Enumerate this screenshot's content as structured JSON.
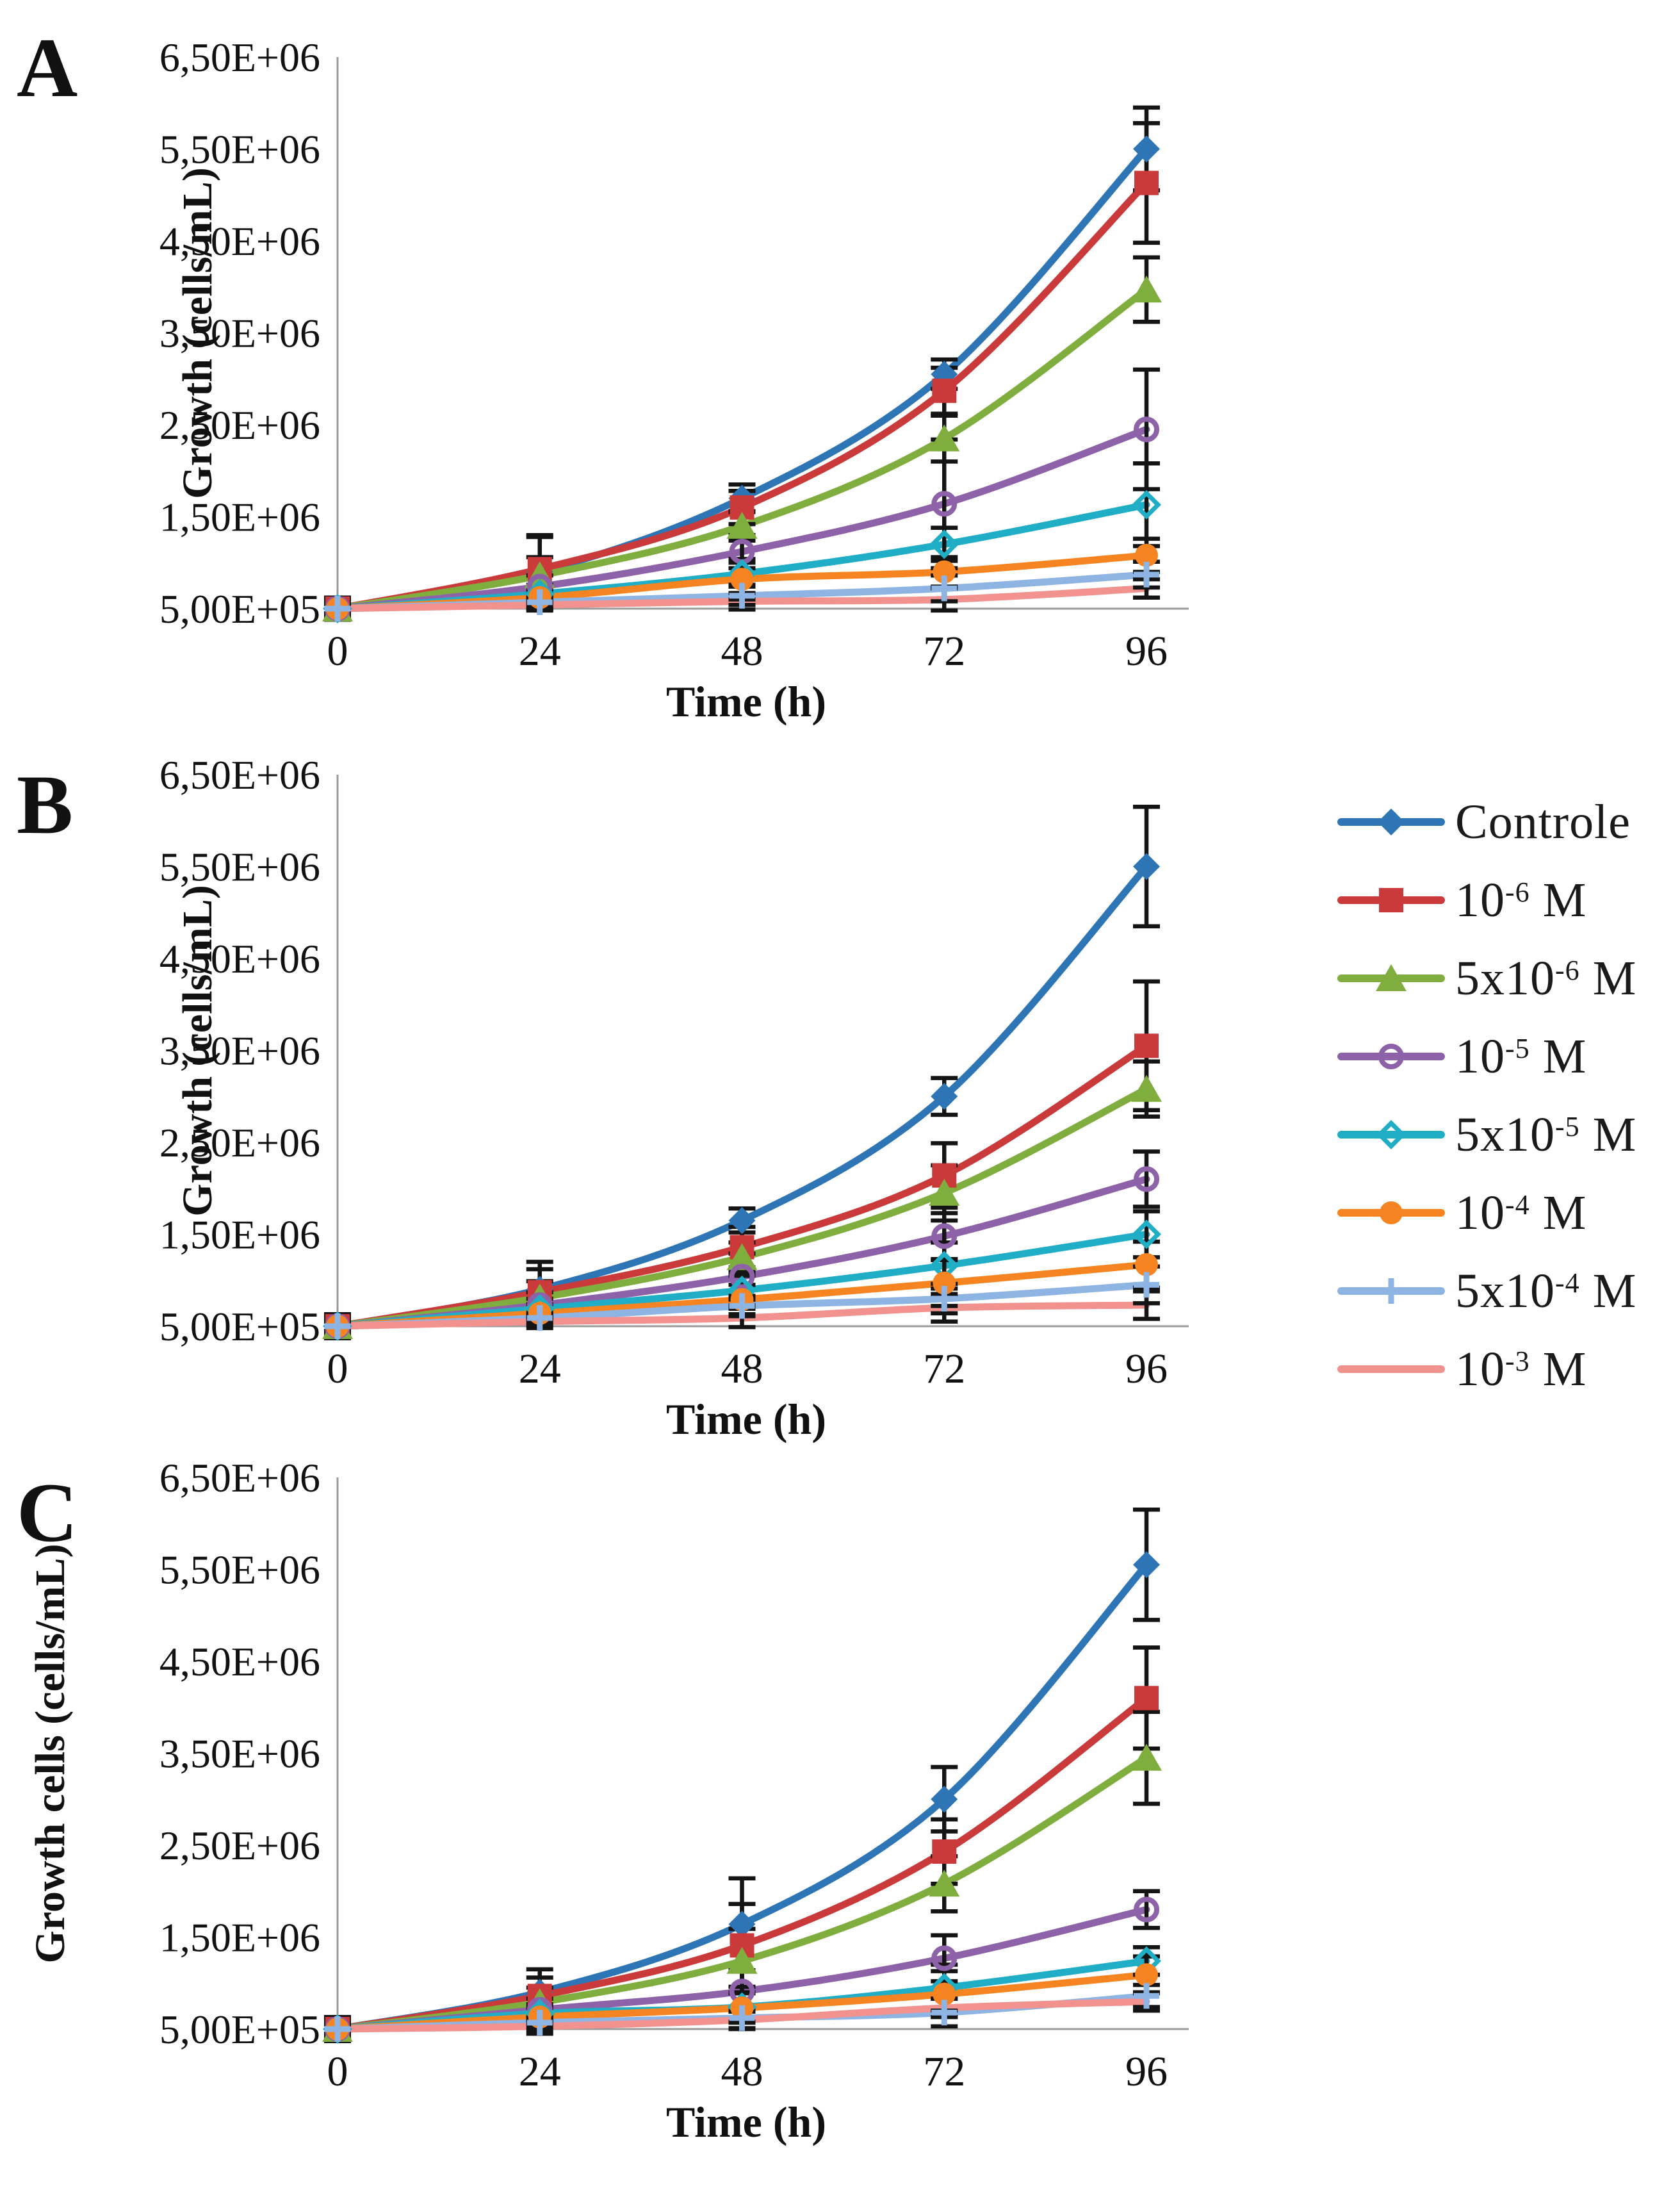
{
  "figure": {
    "x_title": "Time (h)",
    "x_ticks": [
      "0",
      "24",
      "48",
      "72",
      "96"
    ],
    "y_ticks": [
      "6,50E+06",
      "5,50E+06",
      "4,50E+06",
      "3,50E+06",
      "2,50E+06",
      "1,50E+06",
      "5,00E+05"
    ],
    "panel_letters": [
      "A",
      "B",
      "C"
    ],
    "axis_color": "#9a9a9a",
    "error_bar_color": "#141414",
    "text_color": "#111111"
  },
  "legend": [
    {
      "main": "Controle",
      "sup": "",
      "after": ""
    },
    {
      "main": "10",
      "sup": "-6",
      "after": " M"
    },
    {
      "main": "5x10",
      "sup": "-6",
      "after": " M"
    },
    {
      "main": "10",
      "sup": "-5",
      "after": " M"
    },
    {
      "main": "5x10",
      "sup": "-5",
      "after": " M"
    },
    {
      "main": "10",
      "sup": "-4",
      "after": " M"
    },
    {
      "main": "5x10",
      "sup": "-4",
      "after": " M"
    },
    {
      "main": "10",
      "sup": "-3",
      "after": " M"
    }
  ],
  "series_style": [
    {
      "name": "Controle",
      "color": "#2E75B6",
      "marker": "diamond"
    },
    {
      "name": "10-6 M",
      "color": "#CB3A3A",
      "marker": "square"
    },
    {
      "name": "5x10-6 M",
      "color": "#7FAE3E",
      "marker": "triangle"
    },
    {
      "name": "10-5 M",
      "color": "#8E62A8",
      "marker": "circle-open"
    },
    {
      "name": "5x10-5 M",
      "color": "#1FAEC5",
      "marker": "diamond-open"
    },
    {
      "name": "10-4 M",
      "color": "#F68420",
      "marker": "circle"
    },
    {
      "name": "5x10-4 M",
      "color": "#8EB4E3",
      "marker": "plus"
    },
    {
      "name": "10-3 M",
      "color": "#F2928F",
      "marker": "none"
    }
  ],
  "chart_data": [
    {
      "type": "line",
      "panel": "A",
      "ylabel": "Growth (cells/mL)",
      "xlabel": "Time (h)",
      "x": [
        0,
        24,
        48,
        72,
        96
      ],
      "ylim": [
        500000,
        6500000
      ],
      "grid": false,
      "legend_position": "right-of-panel-B",
      "series": [
        {
          "name": "Controle",
          "values": [
            500000,
            900000,
            1700000,
            3050000,
            5500000
          ],
          "err": [
            120000,
            400000,
            150000,
            160000,
            450000
          ]
        },
        {
          "name": "10-6 M",
          "values": [
            500000,
            930000,
            1600000,
            2870000,
            5130000
          ],
          "err": [
            120000,
            350000,
            180000,
            250000,
            650000
          ]
        },
        {
          "name": "5x10-6 M",
          "values": [
            500000,
            860000,
            1400000,
            2350000,
            3970000
          ],
          "err": [
            100000,
            200000,
            160000,
            250000,
            350000
          ]
        },
        {
          "name": "10-5 M",
          "values": [
            500000,
            740000,
            1120000,
            1640000,
            2450000
          ],
          "err": [
            90000,
            120000,
            180000,
            700000,
            650000
          ]
        },
        {
          "name": "5x10-5 M",
          "values": [
            500000,
            660000,
            880000,
            1200000,
            1630000
          ],
          "err": [
            80000,
            100000,
            120000,
            180000,
            450000
          ]
        },
        {
          "name": "10-4 M",
          "values": [
            500000,
            620000,
            820000,
            900000,
            1080000
          ],
          "err": [
            70000,
            90000,
            220000,
            160000,
            180000
          ]
        },
        {
          "name": "5x10-4 M",
          "values": [
            500000,
            570000,
            640000,
            720000,
            870000
          ],
          "err": [
            60000,
            80000,
            100000,
            140000,
            140000
          ]
        },
        {
          "name": "10-3 M",
          "values": [
            500000,
            540000,
            580000,
            600000,
            720000
          ],
          "err": [
            50000,
            60000,
            90000,
            120000,
            100000
          ]
        }
      ]
    },
    {
      "type": "line",
      "panel": "B",
      "ylabel": "Growth (cells/mL)",
      "xlabel": "Time (h)",
      "x": [
        0,
        24,
        48,
        72,
        96
      ],
      "ylim": [
        500000,
        6500000
      ],
      "grid": false,
      "series": [
        {
          "name": "Controle",
          "values": [
            500000,
            900000,
            1650000,
            3000000,
            5500000
          ],
          "err": [
            130000,
            300000,
            130000,
            200000,
            650000
          ]
        },
        {
          "name": "10-6 M",
          "values": [
            500000,
            870000,
            1360000,
            2140000,
            3550000
          ],
          "err": [
            110000,
            250000,
            220000,
            350000,
            700000
          ]
        },
        {
          "name": "5x10-6 M",
          "values": [
            500000,
            810000,
            1250000,
            1950000,
            3080000
          ],
          "err": [
            100000,
            180000,
            160000,
            300000,
            300000
          ]
        },
        {
          "name": "10-5 M",
          "values": [
            500000,
            730000,
            1040000,
            1480000,
            2100000
          ],
          "err": [
            90000,
            140000,
            250000,
            250000,
            300000
          ]
        },
        {
          "name": "5x10-5 M",
          "values": [
            500000,
            690000,
            890000,
            1160000,
            1500000
          ],
          "err": [
            80000,
            110000,
            160000,
            250000,
            250000
          ]
        },
        {
          "name": "10-4 M",
          "values": [
            500000,
            640000,
            790000,
            970000,
            1170000
          ],
          "err": [
            70000,
            100000,
            160000,
            250000,
            250000
          ]
        },
        {
          "name": "5x10-4 M",
          "values": [
            500000,
            590000,
            720000,
            800000,
            950000
          ],
          "err": [
            60000,
            80000,
            110000,
            160000,
            200000
          ]
        },
        {
          "name": "10-3 M",
          "values": [
            500000,
            550000,
            590000,
            700000,
            730000
          ],
          "err": [
            50000,
            70000,
            100000,
            150000,
            150000
          ]
        }
      ]
    },
    {
      "type": "line",
      "panel": "C",
      "ylabel": "Growth cells (cells/mL)",
      "xlabel": "Time (h)",
      "x": [
        0,
        24,
        48,
        72,
        96
      ],
      "ylim": [
        500000,
        6500000
      ],
      "grid": false,
      "series": [
        {
          "name": "Controle",
          "values": [
            500000,
            900000,
            1640000,
            3000000,
            5550000
          ],
          "err": [
            130000,
            250000,
            500000,
            350000,
            600000
          ]
        },
        {
          "name": "10-6 M",
          "values": [
            500000,
            860000,
            1410000,
            2430000,
            4100000
          ],
          "err": [
            110000,
            200000,
            450000,
            350000,
            550000
          ]
        },
        {
          "name": "5x10-6 M",
          "values": [
            500000,
            790000,
            1240000,
            2080000,
            3450000
          ],
          "err": [
            100000,
            160000,
            350000,
            300000,
            500000
          ]
        },
        {
          "name": "10-5 M",
          "values": [
            500000,
            710000,
            910000,
            1270000,
            1800000
          ],
          "err": [
            80000,
            120000,
            220000,
            250000,
            200000
          ]
        },
        {
          "name": "5x10-5 M",
          "values": [
            500000,
            670000,
            740000,
            950000,
            1240000
          ],
          "err": [
            80000,
            100000,
            160000,
            250000,
            150000
          ]
        },
        {
          "name": "10-4 M",
          "values": [
            500000,
            630000,
            730000,
            880000,
            1090000
          ],
          "err": [
            60000,
            100000,
            160000,
            250000,
            200000
          ]
        },
        {
          "name": "5x10-4 M",
          "values": [
            500000,
            570000,
            620000,
            680000,
            860000
          ],
          "err": [
            50000,
            80000,
            110000,
            150000,
            120000
          ]
        },
        {
          "name": "10-3 M",
          "values": [
            500000,
            530000,
            600000,
            730000,
            800000
          ],
          "err": [
            50000,
            80000,
            100000,
            100000,
            100000
          ]
        }
      ]
    }
  ]
}
